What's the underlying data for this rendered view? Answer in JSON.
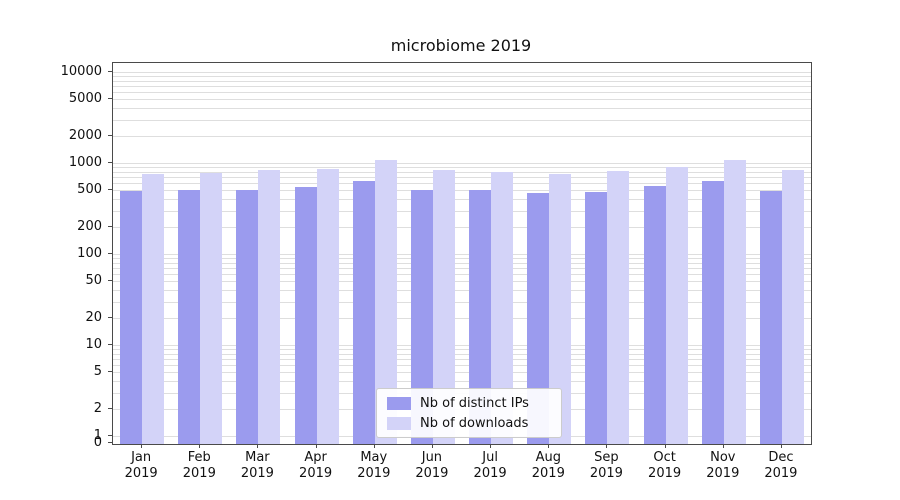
{
  "title": "microbiome 2019",
  "chart_data": {
    "type": "bar",
    "title": "microbiome 2019",
    "categories": [
      "Jan",
      "Feb",
      "Mar",
      "Apr",
      "May",
      "Jun",
      "Jul",
      "Aug",
      "Sep",
      "Oct",
      "Nov",
      "Dec"
    ],
    "year": "2019",
    "series": [
      {
        "name": "Nb of distinct IPs",
        "color": "#9b9bee",
        "values": [
          500,
          520,
          520,
          560,
          650,
          520,
          520,
          480,
          490,
          580,
          650,
          510
        ]
      },
      {
        "name": "Nb of downloads",
        "color": "#d3d3f8",
        "values": [
          780,
          790,
          850,
          890,
          1120,
          860,
          820,
          780,
          840,
          930,
          1110,
          850
        ]
      }
    ],
    "yticks": [
      0,
      1,
      2,
      5,
      10,
      20,
      50,
      100,
      200,
      500,
      1000,
      2000,
      5000,
      10000
    ],
    "xlabel": "",
    "ylabel": "",
    "yscale": "symlog",
    "ylim": [
      0,
      12000
    ],
    "grid": "horizontal-log-minor",
    "legend_position": "lower-center"
  },
  "colors": {
    "grid": "#dedede",
    "axis": "#4a4a4a",
    "text": "#111111",
    "legend_border": "#cccccc",
    "background": "#ffffff"
  }
}
